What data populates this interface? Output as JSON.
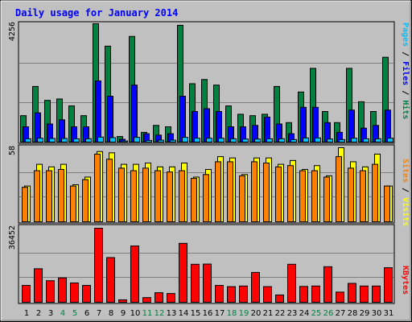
{
  "chart_data": [
    {
      "type": "bar",
      "panel": "hits",
      "title": "Daily usage for January 2014",
      "categories": [
        "1",
        "2",
        "3",
        "4",
        "5",
        "6",
        "7",
        "8",
        "9",
        "10",
        "11",
        "12",
        "13",
        "14",
        "15",
        "16",
        "17",
        "18",
        "19",
        "20",
        "21",
        "22",
        "23",
        "24",
        "25",
        "26",
        "27",
        "28",
        "29",
        "30",
        "31"
      ],
      "weekend_days": [
        "4",
        "5",
        "11",
        "12",
        "18",
        "19",
        "25",
        "26"
      ],
      "ymax_label": "4256",
      "ylim": [
        0,
        4256
      ],
      "grid": true,
      "series": [
        {
          "name": "Hits",
          "color": "#008040",
          "values": [
            950,
            2000,
            1500,
            1550,
            1300,
            950,
            4256,
            3450,
            200,
            3800,
            350,
            600,
            550,
            4200,
            2100,
            2250,
            2050,
            1300,
            1000,
            950,
            1000,
            2000,
            700,
            1800,
            2650,
            1100,
            700,
            2650,
            1450,
            1100,
            3050
          ]
        },
        {
          "name": "Files",
          "color": "#0000ff",
          "values": [
            550,
            1050,
            650,
            800,
            550,
            550,
            2200,
            1650,
            100,
            2050,
            300,
            250,
            300,
            1650,
            1100,
            1200,
            1100,
            550,
            550,
            600,
            900,
            650,
            300,
            1250,
            1250,
            700,
            350,
            1150,
            500,
            600,
            1150
          ]
        },
        {
          "name": "Pages",
          "color": "#00c0ff",
          "values": [
            120,
            140,
            130,
            130,
            120,
            120,
            180,
            160,
            40,
            170,
            60,
            70,
            70,
            170,
            140,
            140,
            140,
            120,
            110,
            110,
            120,
            120,
            90,
            150,
            150,
            110,
            90,
            140,
            120,
            120,
            140
          ]
        }
      ]
    },
    {
      "type": "bar",
      "panel": "visits",
      "categories": [
        "1",
        "2",
        "3",
        "4",
        "5",
        "6",
        "7",
        "8",
        "9",
        "10",
        "11",
        "12",
        "13",
        "14",
        "15",
        "16",
        "17",
        "18",
        "19",
        "20",
        "21",
        "22",
        "23",
        "24",
        "25",
        "26",
        "27",
        "28",
        "29",
        "30",
        "31"
      ],
      "ymax_label": "58",
      "ylim": [
        0,
        58
      ],
      "grid": true,
      "series": [
        {
          "name": "Visits",
          "color": "#ffff00",
          "values": [
            28,
            45,
            43,
            45,
            29,
            35,
            55,
            54,
            45,
            45,
            46,
            43,
            43,
            46,
            35,
            41,
            51,
            50,
            37,
            50,
            50,
            45,
            48,
            41,
            44,
            36,
            58,
            47,
            43,
            53,
            28
          ]
        },
        {
          "name": "Sites",
          "color": "#ff8000",
          "values": [
            27,
            40,
            40,
            41,
            28,
            33,
            53,
            49,
            42,
            40,
            42,
            40,
            39,
            40,
            34,
            37,
            47,
            47,
            36,
            47,
            46,
            43,
            44,
            40,
            40,
            35,
            51,
            42,
            40,
            45,
            28
          ]
        }
      ]
    },
    {
      "type": "bar",
      "panel": "kbytes",
      "categories": [
        "1",
        "2",
        "3",
        "4",
        "5",
        "6",
        "7",
        "8",
        "9",
        "10",
        "11",
        "12",
        "13",
        "14",
        "15",
        "16",
        "17",
        "18",
        "19",
        "20",
        "21",
        "22",
        "23",
        "24",
        "25",
        "26",
        "27",
        "28",
        "29",
        "30",
        "31"
      ],
      "ymax_label": "36452",
      "ylim": [
        0,
        36452
      ],
      "grid": true,
      "series": [
        {
          "name": "KBytes",
          "color": "#ff0000",
          "values": [
            8300,
            16500,
            10600,
            12000,
            9500,
            8300,
            36452,
            22000,
            1200,
            27700,
            2300,
            4700,
            4300,
            29000,
            18700,
            18800,
            8300,
            7700,
            8000,
            14700,
            7700,
            3600,
            18700,
            7800,
            8000,
            17500,
            5000,
            9300,
            8000,
            8000,
            17000
          ]
        }
      ]
    }
  ]
}
